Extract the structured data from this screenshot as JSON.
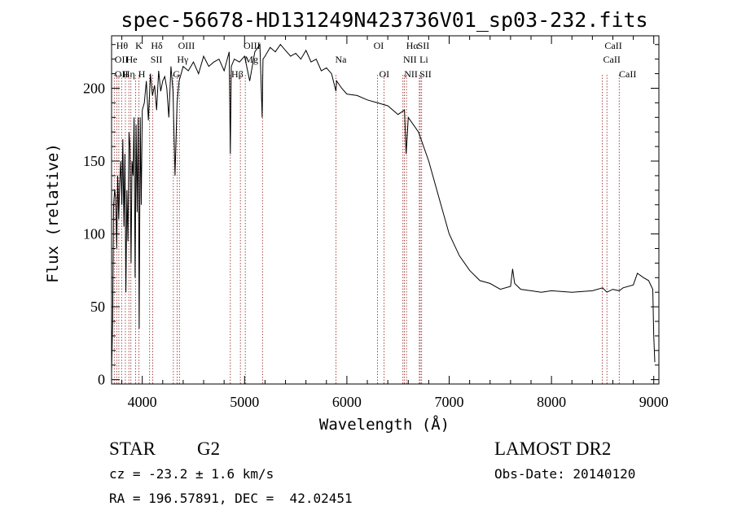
{
  "chart_data": {
    "type": "line",
    "title": "spec-56678-HD131249N423736V01_sp03-232.fits",
    "xlabel": "Wavelength (Å)",
    "ylabel": "Flux (relative)",
    "xlim": [
      3700,
      9050
    ],
    "ylim": [
      -3,
      236
    ],
    "xticks": [
      4000,
      5000,
      6000,
      7000,
      8000,
      9000
    ],
    "yticks": [
      0,
      50,
      100,
      150,
      200
    ],
    "grid": false,
    "series": [
      {
        "x": [
          3700,
          3710,
          3720,
          3730,
          3740,
          3750,
          3760,
          3770,
          3780,
          3790,
          3800,
          3810,
          3820,
          3830,
          3840,
          3850,
          3860,
          3870,
          3880,
          3890,
          3900,
          3910,
          3920,
          3930,
          3940,
          3950,
          3960,
          3970,
          3980,
          3990,
          4000,
          4020,
          4040,
          4060,
          4080,
          4100,
          4120,
          4140,
          4160,
          4180,
          4200,
          4220,
          4240,
          4260,
          4280,
          4300,
          4320,
          4340,
          4360,
          4380,
          4400,
          4450,
          4500,
          4550,
          4600,
          4650,
          4700,
          4750,
          4800,
          4850,
          4861,
          4870,
          4900,
          4950,
          5000,
          5050,
          5100,
          5150,
          5172,
          5180,
          5200,
          5250,
          5300,
          5350,
          5400,
          5450,
          5500,
          5550,
          5600,
          5650,
          5700,
          5750,
          5800,
          5850,
          5893,
          5900,
          5950,
          6000,
          6100,
          6200,
          6300,
          6400,
          6500,
          6563,
          6580,
          6600,
          6700,
          6800,
          6900,
          7000,
          7100,
          7200,
          7300,
          7400,
          7500,
          7600,
          7620,
          7640,
          7700,
          7800,
          7900,
          8000,
          8200,
          8400,
          8500,
          8542,
          8600,
          8662,
          8700,
          8800,
          8840,
          8900,
          8950,
          8990,
          9000,
          9010
        ],
        "y": [
          5,
          40,
          120,
          130,
          125,
          90,
          140,
          110,
          135,
          150,
          120,
          165,
          105,
          155,
          60,
          130,
          95,
          170,
          160,
          80,
          150,
          140,
          180,
          70,
          175,
          115,
          180,
          35,
          180,
          120,
          185,
          190,
          205,
          178,
          210,
          195,
          202,
          185,
          212,
          198,
          205,
          208,
          200,
          180,
          215,
          198,
          140,
          190,
          205,
          210,
          215,
          212,
          218,
          210,
          222,
          215,
          218,
          220,
          212,
          225,
          155,
          215,
          220,
          218,
          222,
          205,
          225,
          230,
          180,
          220,
          222,
          228,
          225,
          230,
          226,
          222,
          224,
          220,
          226,
          218,
          220,
          212,
          214,
          210,
          198,
          205,
          200,
          196,
          195,
          192,
          190,
          188,
          182,
          185,
          155,
          180,
          170,
          150,
          125,
          100,
          85,
          75,
          68,
          66,
          62,
          64,
          76,
          66,
          62,
          61,
          60,
          61,
          60,
          61,
          63,
          60,
          62,
          61,
          63,
          65,
          73,
          70,
          68,
          62,
          30,
          12
        ]
      }
    ],
    "lines": [
      {
        "x": 3726,
        "label": "OII"
      },
      {
        "x": 3750,
        "label": "Hθ"
      },
      {
        "x": 3771,
        "label": "OII"
      },
      {
        "x": 3798,
        "label": "Hη"
      },
      {
        "x": 3835,
        "label": "Hη"
      },
      {
        "x": 3869,
        "label": "He"
      },
      {
        "x": 3889,
        "label": "He"
      },
      {
        "x": 3934,
        "label": "K"
      },
      {
        "x": 3968,
        "label": "H"
      },
      {
        "x": 4072,
        "label": "SII"
      },
      {
        "x": 4102,
        "label": "Hδ"
      },
      {
        "x": 4304,
        "label": "G"
      },
      {
        "x": 4340,
        "label": "Hγ"
      },
      {
        "x": 4363,
        "label": "OIII"
      },
      {
        "x": 4861,
        "label": "Hβ"
      },
      {
        "x": 4959,
        "label": "OIII"
      },
      {
        "x": 5007,
        "label": "OIII"
      },
      {
        "x": 5175,
        "label": "Mg"
      },
      {
        "x": 5893,
        "label": "Na"
      },
      {
        "x": 6300,
        "label": "OI"
      },
      {
        "x": 6364,
        "label": "OI"
      },
      {
        "x": 6548,
        "label": "NII"
      },
      {
        "x": 6563,
        "label": "Hα"
      },
      {
        "x": 6583,
        "label": "NII"
      },
      {
        "x": 6708,
        "label": "Li"
      },
      {
        "x": 6717,
        "label": "SII"
      },
      {
        "x": 6731,
        "label": "SII"
      },
      {
        "x": 8498,
        "label": "CaII"
      },
      {
        "x": 8542,
        "label": "CaII"
      },
      {
        "x": 8662,
        "label": "CaII"
      }
    ]
  },
  "labels_text": [
    {
      "row": 1,
      "text": "Hθ"
    },
    {
      "row": 1,
      "text": "K"
    },
    {
      "row": 1,
      "text": "Hδ"
    },
    {
      "row": 1,
      "text": "OIII"
    },
    {
      "row": 1,
      "text": "OIII"
    },
    {
      "row": 1,
      "text": "OI"
    },
    {
      "row": 1,
      "text": "Hα"
    },
    {
      "row": 1,
      "text": "SII"
    },
    {
      "row": 1,
      "text": "CaII"
    },
    {
      "row": 2,
      "text": "OII"
    },
    {
      "row": 2,
      "text": "He"
    },
    {
      "row": 2,
      "text": "SII"
    },
    {
      "row": 2,
      "text": "Hγ"
    },
    {
      "row": 2,
      "text": "Mg"
    },
    {
      "row": 2,
      "text": "Na"
    },
    {
      "row": 2,
      "text": "NII"
    },
    {
      "row": 2,
      "text": "Li"
    },
    {
      "row": 2,
      "text": "CaII"
    },
    {
      "row": 3,
      "text": "OII"
    },
    {
      "row": 3,
      "text": "Hη"
    },
    {
      "row": 3,
      "text": "H"
    },
    {
      "row": 3,
      "text": "G"
    },
    {
      "row": 3,
      "text": "Hβ"
    },
    {
      "row": 3,
      "text": "OI"
    },
    {
      "row": 3,
      "text": "NII"
    },
    {
      "row": 3,
      "text": "SII"
    },
    {
      "row": 3,
      "text": "CaII"
    }
  ],
  "info": {
    "object_class": "STAR",
    "subclass": "G2",
    "redshift": "cz = -23.2 ± 1.6 km/s",
    "coords": "RA = 196.57891, DEC =  42.02451",
    "survey": "LAMOST DR2",
    "obs_date": "Obs-Date: 20140120"
  },
  "colors": {
    "spectrum": "#000000",
    "line_marker": "#8b1a1a"
  }
}
